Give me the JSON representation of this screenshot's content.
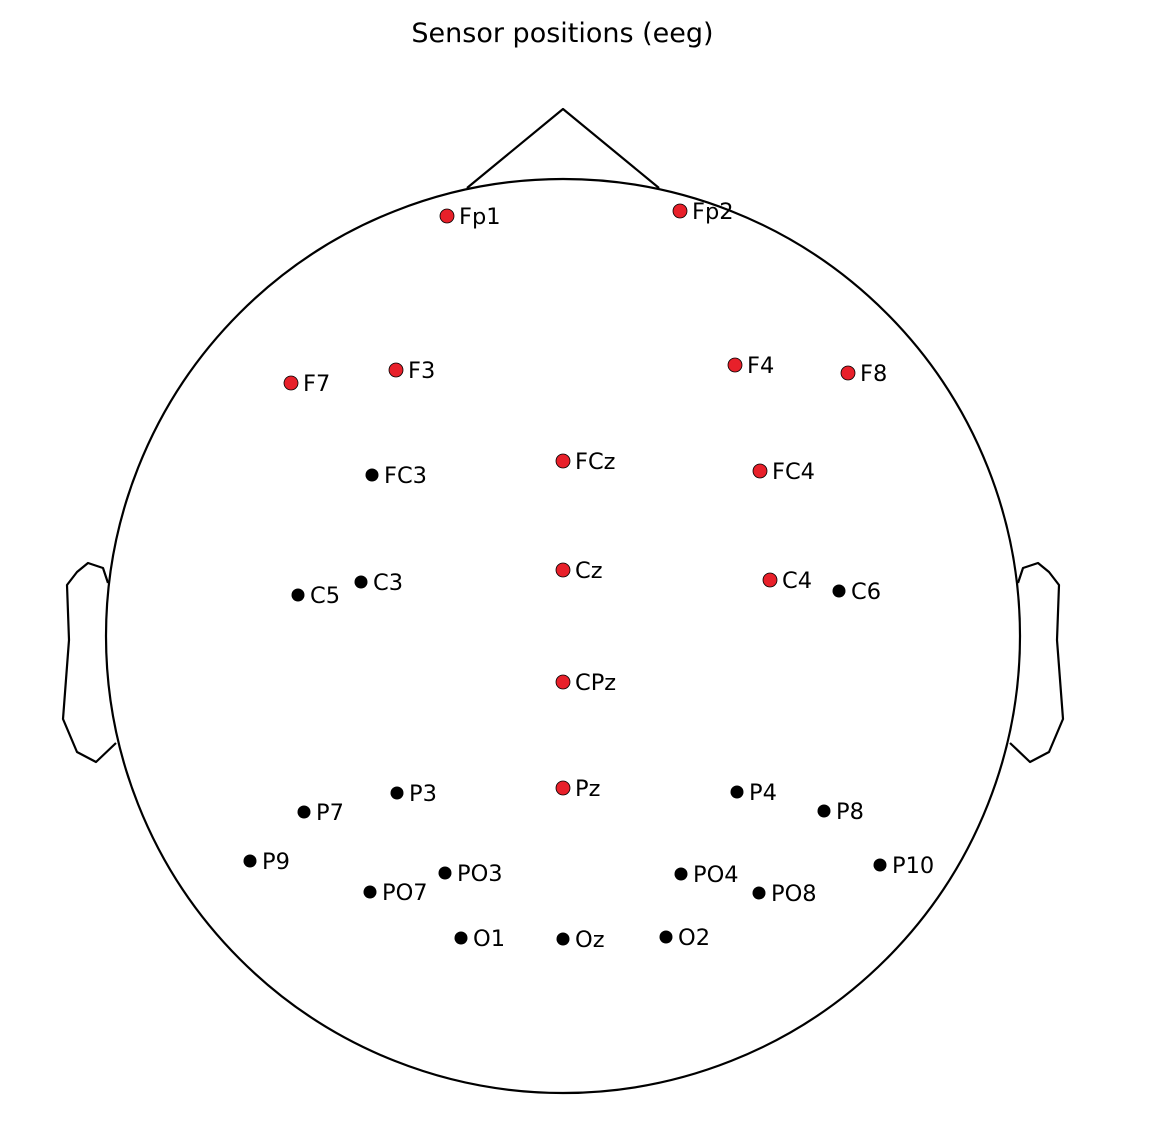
{
  "title": "Sensor positions (eeg)",
  "colors": {
    "outline": "#000000",
    "selected": "#e8202a",
    "unselected": "#000000"
  },
  "sensors": [
    {
      "name": "Fp1",
      "selected": true
    },
    {
      "name": "Fp2",
      "selected": true
    },
    {
      "name": "F7",
      "selected": true
    },
    {
      "name": "F3",
      "selected": true
    },
    {
      "name": "F4",
      "selected": true
    },
    {
      "name": "F8",
      "selected": true
    },
    {
      "name": "FC3",
      "selected": false
    },
    {
      "name": "FCz",
      "selected": true
    },
    {
      "name": "FC4",
      "selected": true
    },
    {
      "name": "C5",
      "selected": false
    },
    {
      "name": "C3",
      "selected": false
    },
    {
      "name": "Cz",
      "selected": true
    },
    {
      "name": "C4",
      "selected": true
    },
    {
      "name": "C6",
      "selected": false
    },
    {
      "name": "CPz",
      "selected": true
    },
    {
      "name": "P7",
      "selected": false
    },
    {
      "name": "P3",
      "selected": false
    },
    {
      "name": "Pz",
      "selected": true
    },
    {
      "name": "P4",
      "selected": false
    },
    {
      "name": "P8",
      "selected": false
    },
    {
      "name": "P9",
      "selected": false
    },
    {
      "name": "PO3",
      "selected": false
    },
    {
      "name": "PO7",
      "selected": false
    },
    {
      "name": "PO4",
      "selected": false
    },
    {
      "name": "PO8",
      "selected": false
    },
    {
      "name": "P10",
      "selected": false
    },
    {
      "name": "O1",
      "selected": false
    },
    {
      "name": "Oz",
      "selected": false
    },
    {
      "name": "O2",
      "selected": false
    }
  ]
}
